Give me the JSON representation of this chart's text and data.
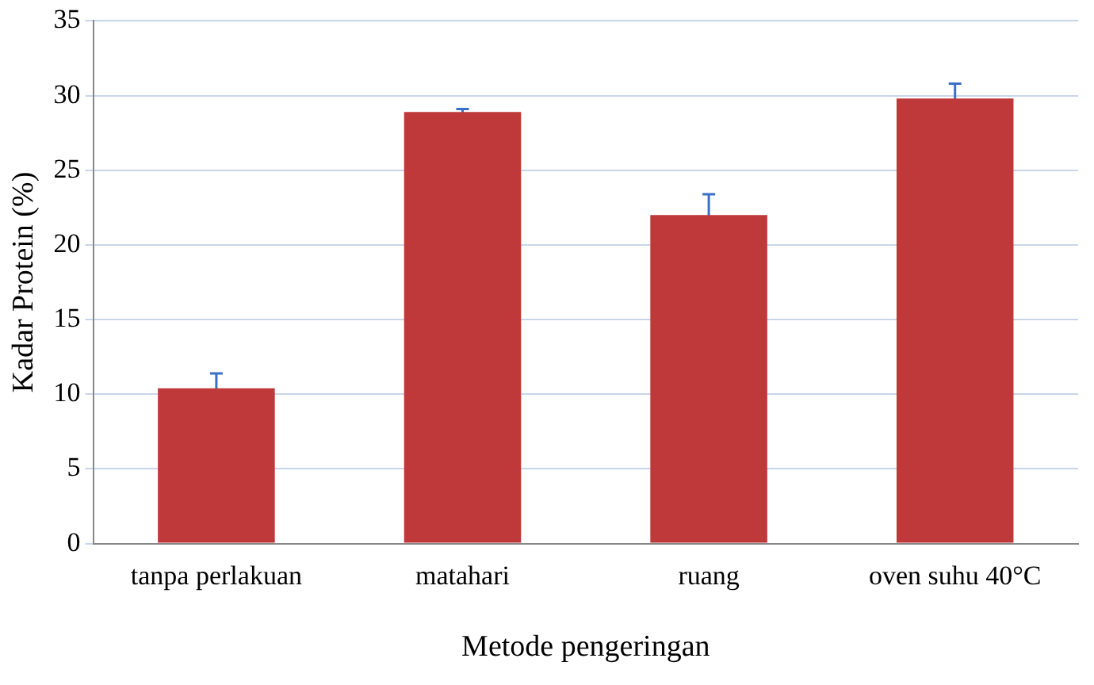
{
  "chart_data": {
    "type": "bar",
    "xlabel": "Metode pengeringan",
    "ylabel": "Kadar Protein (%)",
    "categories": [
      "tanpa perlakuan",
      "matahari",
      "ruang",
      "oven suhu 40°C"
    ],
    "values": [
      10.4,
      28.9,
      22.0,
      29.8
    ],
    "errors": [
      1.0,
      0.2,
      1.4,
      1.0
    ],
    "color": "#c0393a",
    "ylim": [
      0,
      35
    ],
    "yticks": [
      0,
      5,
      10,
      15,
      20,
      25,
      30,
      35
    ],
    "grid": "y",
    "legend": false
  }
}
